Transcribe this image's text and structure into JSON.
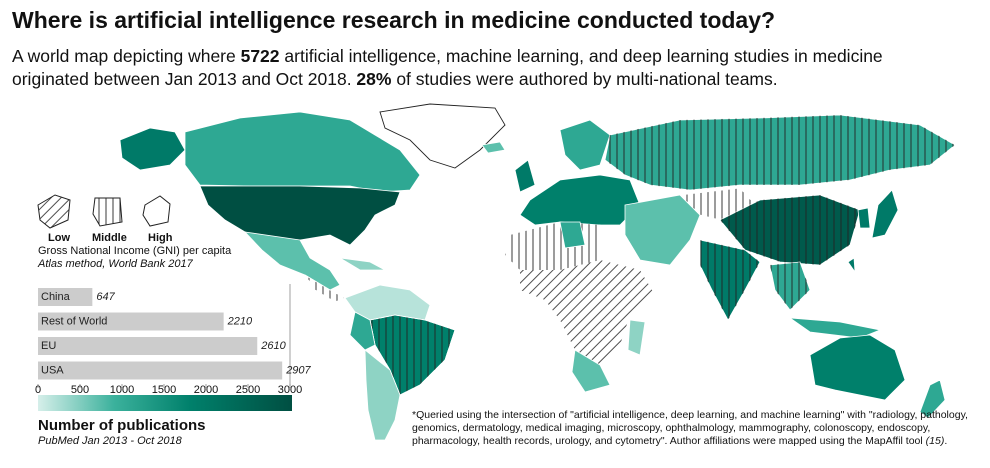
{
  "header": {
    "title": "Where is artificial intelligence research in medicine conducted today?",
    "subtitle_1": "A world map depicting where ",
    "subtitle_bold_1": "5722",
    "subtitle_2": " artificial intelligence, machine learning, and deep learning studies in medicine",
    "subtitle_3": "originated between Jan 2013 and Oct 2018. ",
    "subtitle_bold_2": "28%",
    "subtitle_4": " of studies were authored by multi-national teams."
  },
  "gni_legend": {
    "levels": [
      "Low",
      "Middle",
      "High"
    ],
    "title": "Gross National Income (GNI) per capita",
    "source": "Atlas method, World Bank 2017"
  },
  "chart_data": {
    "type": "bar",
    "orientation": "horizontal",
    "categories": [
      "China",
      "Rest of World",
      "EU",
      "USA"
    ],
    "values": [
      647,
      2210,
      2610,
      2907
    ],
    "color": "#cccccc",
    "xlim": [
      0,
      3000
    ],
    "xticks": [
      0,
      500,
      1000,
      1500,
      2000,
      2500,
      3000
    ],
    "colorbar_label": "Number of publications",
    "colorbar_source": "PubMed Jan 2013 - Oct 2018"
  },
  "footnote": {
    "line_1": "*Queried using the intersection of \"artificial intelligence, deep learning, and machine learning\" with \"radiology, pathology,",
    "line_2": "genomics, dermatology, medical imaging, microscopy, ophthalmology, mammography, colonoscopy, endoscopy,",
    "line_3": "pharmacology, health records, urology, and cytometry\".  Author affiliations were mapped using the MapAffil tool ",
    "reference": "(15)",
    "end": "."
  }
}
